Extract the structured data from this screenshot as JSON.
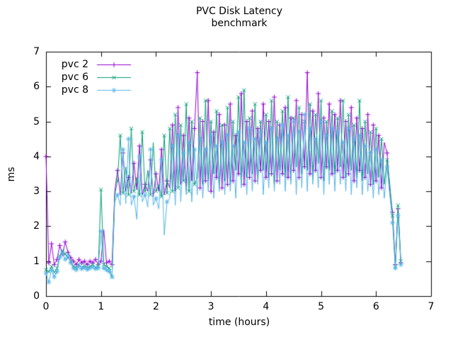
{
  "chart_data": {
    "type": "line",
    "title": "PVC Disk Latency",
    "subtitle": "benchmark",
    "xlabel": "time (hours)",
    "ylabel": "ms",
    "xlim": [
      0,
      7
    ],
    "ylim": [
      0,
      7
    ],
    "xticks": [
      0,
      1,
      2,
      3,
      4,
      5,
      6,
      7
    ],
    "yticks": [
      0,
      1,
      2,
      3,
      4,
      5,
      6,
      7
    ],
    "grid": "off",
    "legend_position": "top-left-inside",
    "x_start": 0,
    "x_step": 0.05,
    "series": [
      {
        "name": "pvc 2",
        "color": "#9400d3",
        "marker": "plus",
        "values": [
          4.0,
          0.95,
          1.5,
          0.9,
          1.05,
          1.45,
          1.2,
          1.55,
          1.25,
          1.1,
          1.0,
          0.9,
          1.05,
          0.95,
          1.0,
          0.9,
          1.0,
          0.95,
          1.05,
          0.9,
          1.0,
          1.9,
          0.95,
          1.0,
          0.9,
          3.0,
          3.6,
          2.9,
          4.1,
          3.0,
          3.4,
          2.95,
          3.8,
          3.05,
          4.3,
          2.9,
          3.2,
          3.0,
          3.9,
          2.85,
          3.5,
          3.0,
          4.2,
          2.9,
          3.3,
          3.1,
          4.9,
          3.0,
          5.4,
          3.2,
          4.6,
          3.0,
          5.1,
          3.3,
          4.8,
          6.4,
          3.1,
          5.0,
          3.3,
          5.6,
          3.0,
          4.7,
          3.4,
          5.2,
          3.1,
          4.9,
          3.2,
          5.5,
          3.3,
          4.6,
          3.5,
          5.8,
          3.2,
          5.0,
          3.4,
          5.3,
          3.3,
          4.8,
          3.6,
          5.5,
          3.4,
          5.0,
          3.5,
          5.7,
          3.3,
          4.9,
          3.5,
          5.4,
          3.4,
          5.1,
          3.6,
          5.6,
          3.4,
          5.2,
          3.7,
          6.4,
          3.5,
          5.3,
          3.6,
          5.8,
          3.4,
          5.1,
          3.7,
          5.5,
          3.5,
          5.2,
          3.6,
          5.6,
          3.4,
          5.0,
          3.5,
          5.4,
          3.3,
          5.1,
          3.6,
          4.8,
          3.4,
          5.2,
          3.2,
          4.9,
          3.3,
          4.6,
          3.1,
          4.4,
          4.1,
          3.0,
          2.4,
          0.9,
          2.5,
          0.95
        ]
      },
      {
        "name": "pvc 6",
        "color": "#009e73",
        "marker": "cross",
        "values": [
          0.75,
          0.7,
          0.85,
          0.68,
          0.8,
          1.15,
          1.3,
          1.2,
          1.1,
          1.0,
          0.85,
          0.8,
          0.9,
          0.82,
          0.88,
          0.8,
          0.85,
          0.9,
          0.82,
          0.86,
          3.05,
          0.9,
          0.85,
          0.8,
          0.55,
          2.9,
          3.3,
          4.6,
          2.95,
          3.7,
          2.9,
          4.8,
          3.0,
          3.4,
          2.9,
          4.7,
          3.0,
          3.6,
          2.9,
          4.4,
          3.0,
          3.2,
          2.85,
          4.6,
          2.95,
          4.8,
          3.0,
          5.2,
          3.1,
          4.9,
          3.3,
          5.5,
          3.0,
          5.0,
          3.2,
          3.4,
          5.1,
          3.2,
          5.6,
          3.3,
          5.0,
          3.5,
          5.3,
          3.1,
          4.9,
          3.3,
          5.4,
          3.2,
          5.0,
          3.6,
          5.7,
          3.2,
          5.9,
          3.4,
          5.1,
          3.5,
          5.5,
          3.3,
          5.0,
          3.6,
          5.2,
          3.4,
          5.6,
          3.2,
          5.0,
          3.6,
          5.3,
          3.4,
          5.7,
          3.3,
          5.1,
          3.7,
          5.4,
          3.5,
          5.0,
          3.6,
          5.5,
          3.4,
          5.2,
          3.8,
          5.6,
          3.3,
          5.0,
          3.6,
          5.3,
          3.5,
          5.1,
          3.7,
          5.6,
          3.4,
          5.2,
          3.6,
          4.9,
          3.4,
          5.6,
          3.3,
          5.0,
          3.5,
          4.7,
          3.2,
          4.8,
          3.4,
          4.5,
          3.2,
          3.9,
          3.2,
          2.3,
          0.85,
          2.6,
          1.0
        ]
      },
      {
        "name": "pvc 8",
        "color": "#56b4e9",
        "marker": "asterisk",
        "values": [
          0.65,
          0.4,
          0.75,
          0.55,
          0.7,
          1.1,
          1.25,
          1.05,
          1.15,
          0.95,
          0.8,
          0.75,
          0.85,
          0.78,
          0.82,
          0.76,
          0.8,
          0.84,
          0.78,
          0.8,
          1.85,
          0.8,
          0.75,
          0.7,
          0.55,
          2.7,
          2.9,
          2.6,
          4.2,
          2.65,
          4.5,
          2.6,
          2.85,
          2.2,
          4.0,
          2.7,
          2.9,
          2.55,
          4.2,
          2.6,
          2.8,
          2.5,
          3.9,
          1.75,
          2.7,
          2.8,
          4.3,
          2.6,
          4.6,
          2.7,
          4.1,
          2.9,
          4.4,
          2.7,
          4.2,
          2.9,
          4.5,
          2.8,
          4.2,
          3.0,
          4.6,
          2.8,
          4.3,
          3.0,
          4.4,
          2.9,
          4.6,
          3.0,
          4.3,
          2.8,
          4.7,
          3.1,
          4.4,
          2.9,
          4.8,
          3.0,
          4.5,
          3.2,
          4.7,
          2.9,
          4.4,
          3.1,
          4.8,
          3.0,
          4.5,
          3.2,
          4.9,
          3.0,
          4.6,
          3.2,
          5.0,
          2.9,
          4.7,
          3.1,
          5.2,
          3.0,
          4.8,
          3.2,
          4.5,
          3.1,
          5.0,
          2.9,
          4.6,
          3.2,
          4.8,
          3.0,
          4.7,
          3.2,
          4.4,
          3.0,
          4.8,
          2.9,
          4.5,
          3.1,
          4.6,
          2.9,
          4.3,
          3.0,
          4.1,
          2.8,
          4.2,
          2.9,
          3.9,
          2.8,
          3.7,
          2.9,
          2.1,
          0.8,
          2.3,
          0.9
        ]
      }
    ]
  },
  "layout_colors": {
    "background": "#ffffff",
    "border": "#000000",
    "text": "#000000"
  }
}
